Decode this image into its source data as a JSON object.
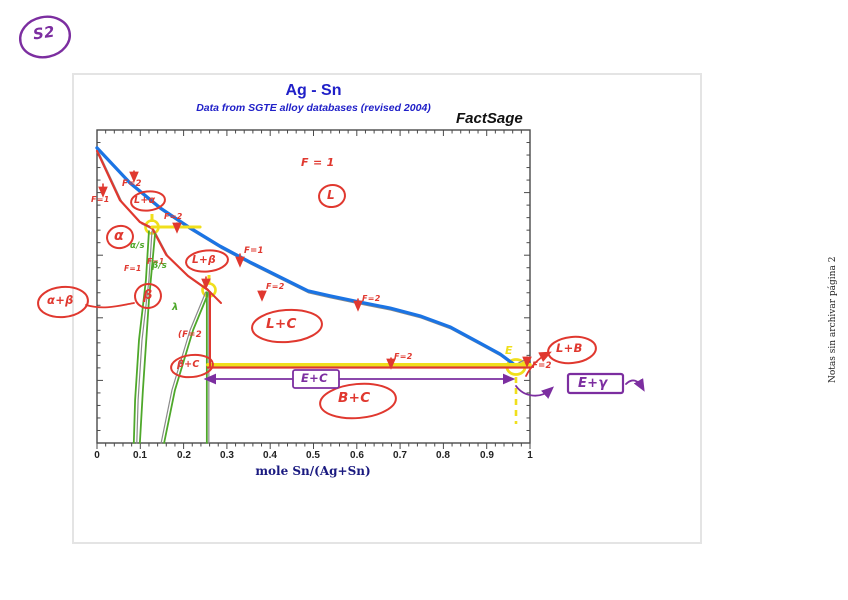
{
  "corner_note": {
    "text": "S2"
  },
  "side_note": {
    "text": "Notas sin archivar página 2"
  },
  "chart": {
    "title": "Ag - Sn",
    "subtitle": "Data from SGTE alloy databases (revised 2004)",
    "brand": "FactSage",
    "x_axis": {
      "title": "mole Sn/(Ag+Sn)",
      "ticks": [
        "0",
        "0.1",
        "0.2",
        "0.3",
        "0.4",
        "0.5",
        "0.6",
        "0.7",
        "0.8",
        "0.9",
        "1"
      ],
      "min": 0,
      "max": 1,
      "minor_ticks_per_major": 4
    }
  },
  "colors": {
    "liquidus_blue": "#1b74e4",
    "printed_gray": "#8a8a8a",
    "pen_red": "#e0382f",
    "pen_green": "#4ea82a",
    "highlighter_yellow": "#f0df1c",
    "pen_purple": "#7c2ea0",
    "title_blue": "#2020c8",
    "axis_title_navy": "#1a1a80"
  },
  "chart_data": {
    "type": "line",
    "title": "Ag - Sn",
    "subtitle": "Data from SGTE alloy databases (revised 2004)",
    "xlabel": "mole Sn/(Ag+Sn)",
    "ylabel": "",
    "xlim": [
      0,
      1
    ],
    "grid": false,
    "legend": false,
    "y_axis_labels_visible": false,
    "note": "Ag-Sn phase diagram; y-coordinates below are fractions of plot height (0 = bottom axis, 1 = top axis) because no temperature labels are visible in the image",
    "series": [
      {
        "name": "liquidus",
        "color": "#1b74e4",
        "style": "hand-highlighted thick blue over printed line",
        "points": [
          [
            0,
            0.943
          ],
          [
            0.076,
            0.831
          ],
          [
            0.146,
            0.751
          ],
          [
            0.215,
            0.687
          ],
          [
            0.284,
            0.629
          ],
          [
            0.353,
            0.578
          ],
          [
            0.423,
            0.53
          ],
          [
            0.487,
            0.486
          ],
          [
            0.538,
            0.47
          ],
          [
            0.607,
            0.45
          ],
          [
            0.677,
            0.431
          ],
          [
            0.746,
            0.406
          ],
          [
            0.815,
            0.371
          ],
          [
            0.885,
            0.319
          ],
          [
            0.931,
            0.284
          ],
          [
            0.965,
            0.249
          ]
        ]
      },
      {
        "name": "liquidus-tail-Sn-side",
        "color": "#8a8a8a",
        "points": [
          [
            0.965,
            0.249
          ],
          [
            1,
            0.275
          ]
        ]
      },
      {
        "name": "alpha-solidus-red-trace",
        "color": "#e0382f",
        "points": [
          [
            0,
            0.933
          ],
          [
            0.053,
            0.776
          ],
          [
            0.099,
            0.706
          ],
          [
            0.127,
            0.687
          ],
          [
            0.16,
            0.601
          ],
          [
            0.21,
            0.534
          ],
          [
            0.256,
            0.489
          ]
        ]
      },
      {
        "name": "alpha-solvus",
        "color": "#4ea82a",
        "points": [
          [
            0.12,
            0.677
          ],
          [
            0.113,
            0.521
          ],
          [
            0.097,
            0.329
          ],
          [
            0.088,
            0.137
          ],
          [
            0.085,
            0
          ]
        ]
      },
      {
        "name": "alpha-solvus-2",
        "color": "#4ea82a",
        "points": [
          [
            0.134,
            0.668
          ],
          [
            0.12,
            0.457
          ],
          [
            0.106,
            0.169
          ],
          [
            0.099,
            0
          ]
        ]
      },
      {
        "name": "beta-solvus",
        "color": "#4ea82a",
        "points": [
          [
            0.258,
            0.482
          ],
          [
            0.222,
            0.361
          ],
          [
            0.18,
            0.169
          ],
          [
            0.155,
            0
          ]
        ]
      },
      {
        "name": "beta-right-boundary-vertical",
        "color": "#4ea82a",
        "points": [
          [
            0.256,
            0.482
          ],
          [
            0.256,
            0
          ]
        ]
      },
      {
        "name": "eutectic-line",
        "color": "#e0382f",
        "style": "yellow-highlighted red over printed line",
        "points": [
          [
            0.256,
            0.243
          ],
          [
            1,
            0.243
          ]
        ]
      },
      {
        "name": "upper-tie-line",
        "color": "#f0df1c",
        "points": [
          [
            0.127,
            0.69
          ],
          [
            0.238,
            0.69
          ]
        ]
      }
    ],
    "special_points": [
      {
        "name": "peritectic-point-circled-yellow",
        "x": 0.127,
        "h": 0.69
      },
      {
        "name": "beta-corner-point-circled-yellow",
        "x": 0.258,
        "h": 0.487
      },
      {
        "name": "eutectic-point-circled-yellow",
        "x": 0.967,
        "h": 0.243
      }
    ]
  },
  "hand": [
    {
      "text": "F = 1",
      "color": "red"
    },
    {
      "text": "L",
      "color": "red"
    },
    {
      "text": "F=1",
      "color": "red"
    },
    {
      "text": "F=2",
      "color": "red"
    },
    {
      "text": "L+α",
      "color": "red"
    },
    {
      "text": "α",
      "color": "red"
    },
    {
      "text": "F=2",
      "color": "red"
    },
    {
      "text": "L+β",
      "color": "red"
    },
    {
      "text": "F=1",
      "color": "red"
    },
    {
      "text": "F=1",
      "color": "red"
    },
    {
      "text": "α/s",
      "color": "green"
    },
    {
      "text": "β/s",
      "color": "green"
    },
    {
      "text": "β",
      "color": "red"
    },
    {
      "text": "α+β",
      "color": "red"
    },
    {
      "text": "F=1",
      "color": "red"
    },
    {
      "text": "F=2",
      "color": "red"
    },
    {
      "text": "F=2",
      "color": "red"
    },
    {
      "text": "L+C",
      "color": "red"
    },
    {
      "text": "λ",
      "color": "green"
    },
    {
      "text": "(F=2",
      "color": "red"
    },
    {
      "text": "β+C",
      "color": "red"
    },
    {
      "text": "F=2",
      "color": "red"
    },
    {
      "text": "B+C",
      "color": "red"
    },
    {
      "text": "E",
      "color": "yellow"
    },
    {
      "text": "F=2",
      "color": "red"
    },
    {
      "text": "L+B",
      "color": "red"
    },
    {
      "text": "E+C",
      "color": "purple"
    },
    {
      "text": "E+γ",
      "color": "purple"
    }
  ]
}
